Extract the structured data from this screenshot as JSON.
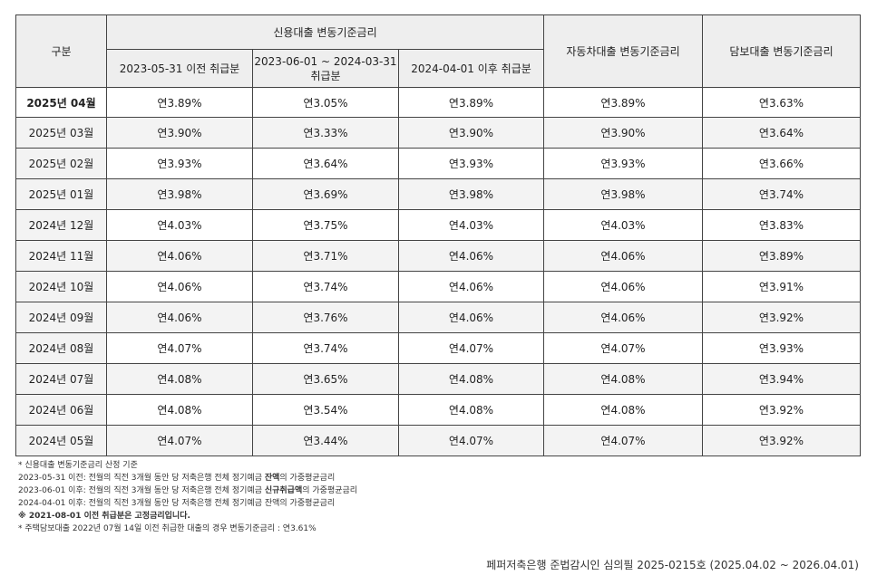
{
  "table": {
    "header": {
      "col_label": "구분",
      "credit_group": "신용대출 변동기준금리",
      "credit_sub": [
        "2023-05-31 이전 취급분",
        "2023-06-01 ~ 2024-03-31 취급분",
        "2024-04-01 이후 취급분"
      ],
      "car": "자동차대출 변동기준금리",
      "mortgage": "담보대출 변동기준금리"
    },
    "current": {
      "label": "2025년 04월",
      "values": [
        "연3.89%",
        "연3.05%",
        "연3.89%",
        "연3.89%",
        "연3.63%"
      ]
    },
    "rows": [
      {
        "label": "2025년 03월",
        "values": [
          "연3.90%",
          "연3.33%",
          "연3.90%",
          "연3.90%",
          "연3.64%"
        ]
      },
      {
        "label": "2025년 02월",
        "values": [
          "연3.93%",
          "연3.64%",
          "연3.93%",
          "연3.93%",
          "연3.66%"
        ]
      },
      {
        "label": "2025년 01월",
        "values": [
          "연3.98%",
          "연3.69%",
          "연3.98%",
          "연3.98%",
          "연3.74%"
        ]
      },
      {
        "label": "2024년 12월",
        "values": [
          "연4.03%",
          "연3.75%",
          "연4.03%",
          "연4.03%",
          "연3.83%"
        ]
      },
      {
        "label": "2024년 11월",
        "values": [
          "연4.06%",
          "연3.71%",
          "연4.06%",
          "연4.06%",
          "연3.89%"
        ]
      },
      {
        "label": "2024년 10월",
        "values": [
          "연4.06%",
          "연3.74%",
          "연4.06%",
          "연4.06%",
          "연3.91%"
        ]
      },
      {
        "label": "2024년 09월",
        "values": [
          "연4.06%",
          "연3.76%",
          "연4.06%",
          "연4.06%",
          "연3.92%"
        ]
      },
      {
        "label": "2024년 08월",
        "values": [
          "연4.07%",
          "연3.74%",
          "연4.07%",
          "연4.07%",
          "연3.93%"
        ]
      },
      {
        "label": "2024년 07월",
        "values": [
          "연4.08%",
          "연3.65%",
          "연4.08%",
          "연4.08%",
          "연3.94%"
        ]
      },
      {
        "label": "2024년 06월",
        "values": [
          "연4.08%",
          "연3.54%",
          "연4.08%",
          "연4.08%",
          "연3.92%"
        ]
      },
      {
        "label": "2024년 05월",
        "values": [
          "연4.07%",
          "연3.44%",
          "연4.07%",
          "연4.07%",
          "연3.92%"
        ]
      }
    ]
  },
  "notes": {
    "n1": "* 신용대출 변동기준금리 산정 기준",
    "n2_pre": "2023-05-31 이전: 전월의 직전 3개월 동안 당 저축은행 전체 정기예금 ",
    "n2_bold": "잔액",
    "n2_post": "의 가중평균금리",
    "n3_pre": "2023-06-01 이후: 전월의 직전 3개월 동안 당 저축은행 전체 정기예금 ",
    "n3_bold": "신규취급액",
    "n3_post": "의 가중평균금리",
    "n4": "2024-04-01 이후: 전월의 직전 3개월 동안 당 저축은행 전체 정기예금 잔액의 가중평균금리",
    "n5": "※ 2021-08-01 이전 취급분은 고정금리입니다.",
    "n6": "* 주택담보대출 2022년 07월 14일 이전 취급한 대출의 경우 변동기준금리 : 연3.61%"
  },
  "footer": "페퍼저축은행 준법감시인 심의필 2025-0215호 (2025.04.02 ~ 2026.04.01)"
}
